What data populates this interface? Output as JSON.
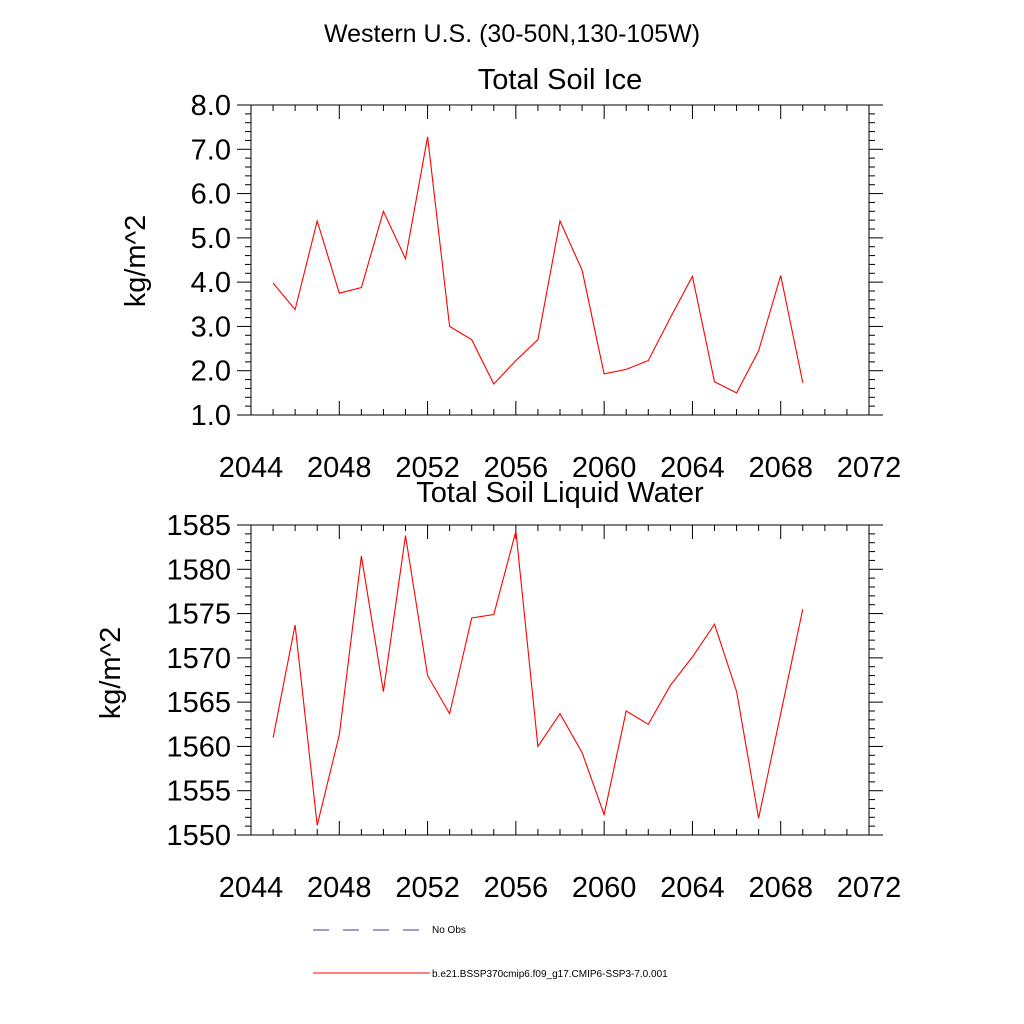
{
  "main_title": "Western U.S. (30-50N,130-105W)",
  "colors": {
    "series": "#ff0000",
    "no_obs": "#3c3c96",
    "axis": "#000000"
  },
  "legend": {
    "items": [
      {
        "label": "No Obs",
        "style": "dashed",
        "color": "#3c3c96"
      },
      {
        "label": "b.e21.BSSP370cmip6.f09_g17.CMIP6-SSP3-7.0.001",
        "style": "solid",
        "color": "#ff0000"
      }
    ]
  },
  "chart_data": [
    {
      "type": "line",
      "title": "Total Soil Ice",
      "xlabel": "",
      "ylabel": "kg/m^2",
      "xlim": [
        2044,
        2072
      ],
      "ylim": [
        1.0,
        8.0
      ],
      "xticks": [
        "2044",
        "2048",
        "2052",
        "2056",
        "2060",
        "2064",
        "2068",
        "2072"
      ],
      "yticks": [
        "1.0",
        "2.0",
        "3.0",
        "4.0",
        "5.0",
        "6.0",
        "7.0",
        "8.0"
      ],
      "grid": false,
      "x": [
        2045,
        2046,
        2047,
        2048,
        2049,
        2050,
        2051,
        2052,
        2053,
        2054,
        2055,
        2056,
        2057,
        2058,
        2059,
        2060,
        2061,
        2062,
        2063,
        2064,
        2065,
        2066,
        2067,
        2068,
        2069
      ],
      "series": [
        {
          "name": "b.e21.BSSP370cmip6.f09_g17.CMIP6-SSP3-7.0.001",
          "values": [
            3.98,
            3.38,
            5.38,
            3.75,
            3.88,
            5.6,
            4.53,
            7.28,
            3.0,
            2.7,
            1.7,
            2.23,
            2.7,
            5.38,
            4.27,
            1.93,
            2.03,
            2.23,
            3.2,
            4.13,
            1.75,
            1.5,
            2.45,
            4.15,
            1.73
          ]
        }
      ]
    },
    {
      "type": "line",
      "title": "Total Soil Liquid Water",
      "xlabel": "",
      "ylabel": "kg/m^2",
      "xlim": [
        2044,
        2072
      ],
      "ylim": [
        1550,
        1585
      ],
      "xticks": [
        "2044",
        "2048",
        "2052",
        "2056",
        "2060",
        "2064",
        "2068",
        "2072"
      ],
      "yticks": [
        "1550",
        "1555",
        "1560",
        "1565",
        "1570",
        "1575",
        "1580",
        "1585"
      ],
      "grid": false,
      "x": [
        2045,
        2046,
        2047,
        2048,
        2049,
        2050,
        2051,
        2052,
        2053,
        2054,
        2055,
        2056,
        2057,
        2058,
        2059,
        2060,
        2061,
        2062,
        2063,
        2064,
        2065,
        2066,
        2067,
        2068,
        2069
      ],
      "series": [
        {
          "name": "b.e21.BSSP370cmip6.f09_g17.CMIP6-SSP3-7.0.001",
          "values": [
            1561.0,
            1573.7,
            1551.1,
            1561.3,
            1581.5,
            1566.2,
            1583.8,
            1568.0,
            1563.7,
            1574.5,
            1574.9,
            1584.3,
            1560.0,
            1563.7,
            1559.3,
            1552.3,
            1564.0,
            1562.5,
            1566.9,
            1570.1,
            1573.8,
            1566.2,
            1551.9,
            1563.7,
            1575.5
          ]
        }
      ]
    }
  ]
}
